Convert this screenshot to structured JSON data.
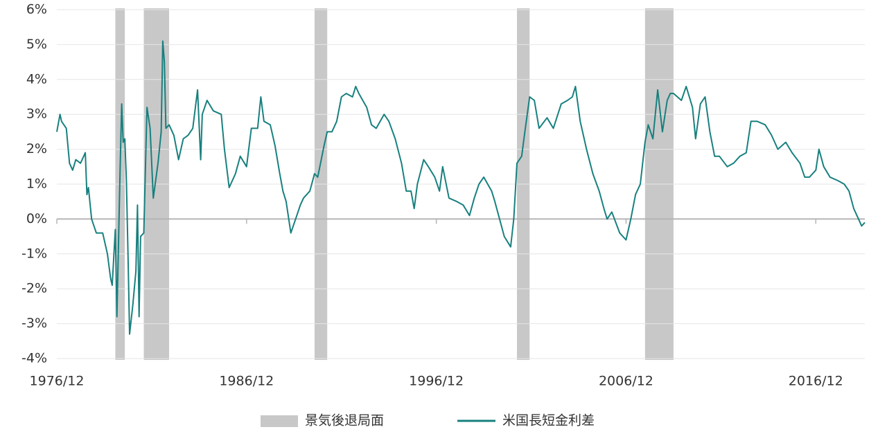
{
  "chart_data": {
    "type": "line",
    "x": [
      "1976/12",
      "1977/02",
      "1977/03",
      "1977/06",
      "1977/08",
      "1977/10",
      "1977/12",
      "1978/03",
      "1978/06",
      "1978/07",
      "1978/08",
      "1978/10",
      "1979/01",
      "1979/05",
      "1979/08",
      "1979/10",
      "1979/11",
      "1980/01",
      "1980/02",
      "1980/04",
      "1980/05",
      "1980/06",
      "1980/07",
      "1980/08",
      "1980/09",
      "1980/10",
      "1980/12",
      "1981/02",
      "1981/03",
      "1981/04",
      "1981/05",
      "1981/07",
      "1981/08",
      "1981/09",
      "1981/11",
      "1982/01",
      "1982/04",
      "1982/06",
      "1982/07",
      "1982/08",
      "1982/09",
      "1982/11",
      "1983/02",
      "1983/05",
      "1983/08",
      "1983/11",
      "1984/02",
      "1984/05",
      "1984/07",
      "1984/08",
      "1984/11",
      "1985/03",
      "1985/08",
      "1985/10",
      "1986/01",
      "1986/05",
      "1986/08",
      "1986/12",
      "1987/03",
      "1987/07",
      "1987/09",
      "1987/11",
      "1988/03",
      "1988/06",
      "1988/09",
      "1988/11",
      "1989/01",
      "1989/04",
      "1989/07",
      "1989/10",
      "1989/12",
      "1990/04",
      "1990/07",
      "1990/09",
      "1991/01",
      "1991/03",
      "1991/06",
      "1991/09",
      "1991/12",
      "1992/03",
      "1992/07",
      "1992/09",
      "1992/11",
      "1993/04",
      "1993/07",
      "1993/10",
      "1994/03",
      "1994/06",
      "1994/10",
      "1995/02",
      "1995/05",
      "1995/08",
      "1995/10",
      "1995/12",
      "1996/04",
      "1996/07",
      "1996/11",
      "1997/02",
      "1997/04",
      "1997/08",
      "1998/01",
      "1998/05",
      "1998/09",
      "1998/12",
      "1999/03",
      "1999/06",
      "1999/11",
      "2000/01",
      "2000/04",
      "2000/07",
      "2000/11",
      "2001/01",
      "2001/03",
      "2001/06",
      "2001/08",
      "2001/11",
      "2002/02",
      "2002/05",
      "2002/10",
      "2003/02",
      "2003/07",
      "2003/11",
      "2004/02",
      "2004/04",
      "2004/07",
      "2004/11",
      "2005/03",
      "2005/07",
      "2005/10",
      "2005/12",
      "2006/03",
      "2006/08",
      "2006/12",
      "2007/03",
      "2007/06",
      "2007/09",
      "2007/12",
      "2008/02",
      "2008/05",
      "2008/08",
      "2008/11",
      "2009/02",
      "2009/04",
      "2009/06",
      "2009/11",
      "2010/02",
      "2010/06",
      "2010/08",
      "2010/11",
      "2011/02",
      "2011/05",
      "2011/08",
      "2011/11",
      "2012/04",
      "2012/08",
      "2012/12",
      "2013/04",
      "2013/07",
      "2013/11",
      "2014/04",
      "2014/08",
      "2014/12",
      "2015/05",
      "2015/09",
      "2016/02",
      "2016/05",
      "2016/08",
      "2016/12",
      "2017/02",
      "2017/05",
      "2017/09",
      "2018/02",
      "2018/06",
      "2018/09",
      "2018/12",
      "2019/03",
      "2019/05",
      "2019/07"
    ],
    "series": [
      {
        "name": "米国長短金利差",
        "color": "#17807e",
        "values": [
          2.5,
          3.0,
          2.8,
          2.6,
          1.6,
          1.4,
          1.7,
          1.6,
          1.9,
          0.7,
          0.9,
          0.0,
          -0.4,
          -0.4,
          -1.0,
          -1.7,
          -1.9,
          -0.3,
          -2.8,
          1.4,
          3.3,
          2.2,
          2.3,
          1.1,
          -1.0,
          -3.3,
          -2.5,
          -1.5,
          0.4,
          -2.8,
          -0.5,
          -0.4,
          1.4,
          3.2,
          2.6,
          0.6,
          1.6,
          2.5,
          5.1,
          4.5,
          2.6,
          2.7,
          2.4,
          1.7,
          2.3,
          2.4,
          2.6,
          3.7,
          1.7,
          3.0,
          3.4,
          3.1,
          3.0,
          2.0,
          0.9,
          1.3,
          1.8,
          1.5,
          2.6,
          2.6,
          3.5,
          2.8,
          2.7,
          2.1,
          1.3,
          0.8,
          0.5,
          -0.4,
          0.0,
          0.4,
          0.6,
          0.8,
          1.3,
          1.2,
          2.1,
          2.5,
          2.5,
          2.8,
          3.5,
          3.6,
          3.5,
          3.8,
          3.6,
          3.2,
          2.7,
          2.6,
          3.0,
          2.8,
          2.3,
          1.6,
          0.8,
          0.8,
          0.3,
          1.0,
          1.7,
          1.5,
          1.2,
          0.8,
          1.5,
          0.6,
          0.5,
          0.4,
          0.1,
          0.6,
          1.0,
          1.2,
          0.8,
          0.5,
          0.0,
          -0.5,
          -0.8,
          0.0,
          1.6,
          1.8,
          2.5,
          3.5,
          3.4,
          2.6,
          2.9,
          2.6,
          3.3,
          3.4,
          3.5,
          3.8,
          2.8,
          2.0,
          1.3,
          0.8,
          0.3,
          0.0,
          0.2,
          -0.4,
          -0.6,
          0.0,
          0.7,
          1.0,
          2.2,
          2.7,
          2.3,
          3.7,
          2.5,
          3.4,
          3.6,
          3.6,
          3.4,
          3.8,
          3.2,
          2.3,
          3.3,
          3.5,
          2.5,
          1.8,
          1.8,
          1.5,
          1.6,
          1.8,
          1.9,
          2.8,
          2.8,
          2.7,
          2.4,
          2.0,
          2.2,
          1.9,
          1.6,
          1.2,
          1.2,
          1.4,
          2.0,
          1.5,
          1.2,
          1.1,
          1.0,
          0.8,
          0.3,
          0.0,
          -0.2,
          -0.1
        ]
      }
    ],
    "recessions": {
      "name": "景気後退局面",
      "color": "#c8c8c8",
      "periods": [
        {
          "start": "1980/01",
          "end": "1980/07"
        },
        {
          "start": "1981/07",
          "end": "1982/11"
        },
        {
          "start": "1990/07",
          "end": "1991/03"
        },
        {
          "start": "2001/03",
          "end": "2001/11"
        },
        {
          "start": "2007/12",
          "end": "2009/06"
        }
      ]
    },
    "xlim": [
      "1976/12",
      "2019/07"
    ],
    "xticks": [
      "1976/12",
      "1986/12",
      "1996/12",
      "2006/12",
      "2016/12"
    ],
    "ylim": [
      -4,
      6
    ],
    "yticks": [
      {
        "value": -4,
        "label": "-4%"
      },
      {
        "value": -3,
        "label": "-3%"
      },
      {
        "value": -2,
        "label": "-2%"
      },
      {
        "value": -1,
        "label": "-1%"
      },
      {
        "value": 0,
        "label": "0%"
      },
      {
        "value": 1,
        "label": "1%"
      },
      {
        "value": 2,
        "label": "2%"
      },
      {
        "value": 3,
        "label": "3%"
      },
      {
        "value": 4,
        "label": "4%"
      },
      {
        "value": 5,
        "label": "5%"
      },
      {
        "value": 6,
        "label": "6%"
      }
    ],
    "negative_tick_color": "#a8322d",
    "grid": true,
    "legend": "bottom"
  }
}
